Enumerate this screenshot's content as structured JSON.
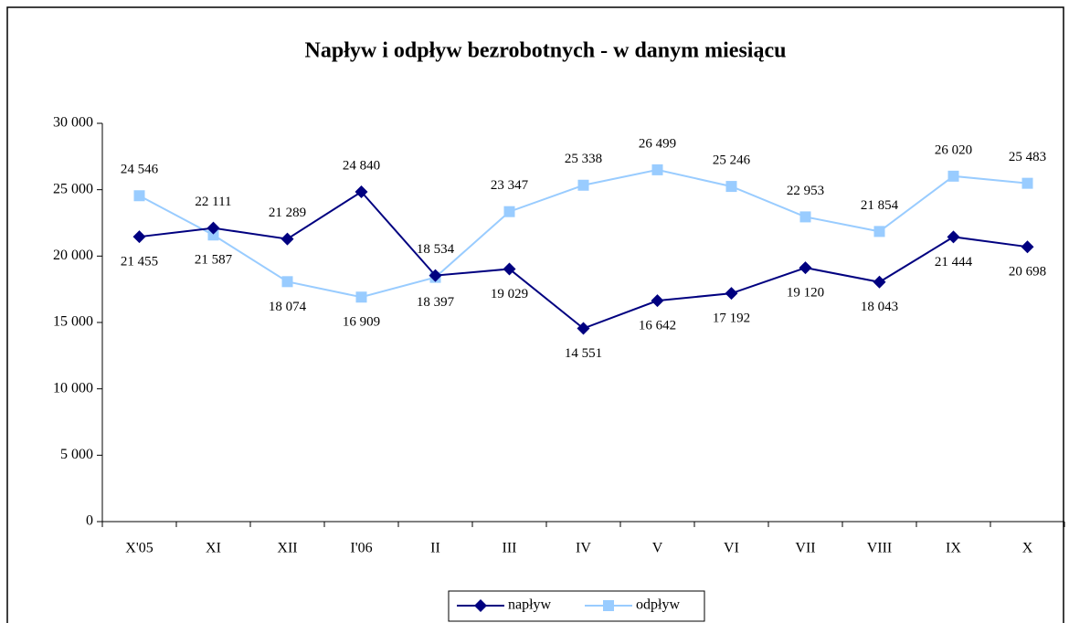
{
  "chart_data": {
    "type": "line",
    "title": "Napływ i odpływ bezrobotnych - w danym miesiącu",
    "categories": [
      "X'05",
      "XI",
      "XII",
      "I'06",
      "II",
      "III",
      "IV",
      "V",
      "VI",
      "VII",
      "VIII",
      "IX",
      "X"
    ],
    "series": [
      {
        "name": "napływ",
        "color": "#000080",
        "marker": "diamond",
        "values": [
          21455,
          22111,
          21289,
          24840,
          18534,
          19029,
          14551,
          16642,
          17192,
          19120,
          18043,
          21444,
          20698
        ],
        "value_labels": [
          "21 455",
          "22 111",
          "21 289",
          "24 840",
          "18 534",
          "19 029",
          "14 551",
          "16 642",
          "17 192",
          "19 120",
          "18 043",
          "21 444",
          "20 698"
        ]
      },
      {
        "name": "odpływ",
        "color": "#99ccff",
        "marker": "square",
        "values": [
          24546,
          21587,
          18074,
          16909,
          18397,
          23347,
          25338,
          26499,
          25246,
          22953,
          21854,
          26020,
          25483
        ],
        "value_labels": [
          "24 546",
          "21 587",
          "18 074",
          "16 909",
          "18 397",
          "23 347",
          "25 338",
          "26 499",
          "25 246",
          "22 953",
          "21 854",
          "26 020",
          "25 483"
        ]
      }
    ],
    "ylim": [
      0,
      30000
    ],
    "yticks": [
      {
        "value": 0,
        "label": "0"
      },
      {
        "value": 5000,
        "label": "5 000"
      },
      {
        "value": 10000,
        "label": "10 000"
      },
      {
        "value": 15000,
        "label": "15 000"
      },
      {
        "value": 20000,
        "label": "20 000"
      },
      {
        "value": 25000,
        "label": "25 000"
      },
      {
        "value": 30000,
        "label": "30 000"
      }
    ],
    "legend": "bottom"
  }
}
